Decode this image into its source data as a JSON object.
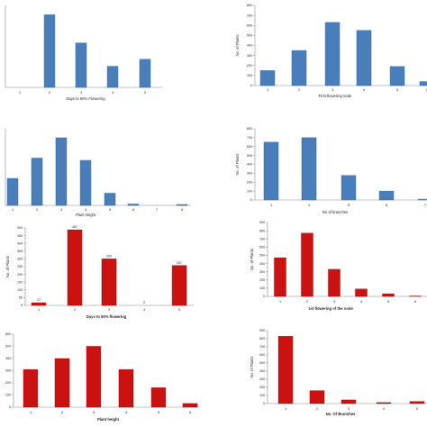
{
  "chart_data": [
    {
      "type": "bar",
      "colors": {
        "fill": "#4a7ebb",
        "edge": "#2e5f9a"
      },
      "categories": [
        "1",
        "2",
        "3",
        "4",
        "5"
      ],
      "values": [
        0,
        62,
        38,
        18,
        24
      ],
      "xlabel": "Days to 50% Flowering",
      "ylabel": "",
      "ylim": [
        0,
        70
      ],
      "yticks": [],
      "data_labels": [],
      "grid": false
    },
    {
      "type": "bar",
      "colors": {
        "fill": "#4a7ebb",
        "edge": "#2e5f9a"
      },
      "categories": [
        "1",
        "2",
        "3",
        "4",
        "5",
        "6"
      ],
      "values": [
        150,
        350,
        630,
        550,
        190,
        40
      ],
      "xlabel": "First flowering node",
      "ylabel": "No. of Plants",
      "ylim": [
        0,
        800
      ],
      "yticks": [
        "0",
        "100",
        "200",
        "300",
        "400",
        "500",
        "600",
        "700",
        "800"
      ],
      "data_labels": [],
      "grid": false
    },
    {
      "type": "bar",
      "colors": {
        "fill": "#4a7ebb",
        "edge": "#2e5f9a"
      },
      "categories": [
        "1",
        "2",
        "3",
        "4",
        "5",
        "6",
        "7",
        "8"
      ],
      "values": [
        60,
        105,
        150,
        100,
        27,
        3,
        0,
        2
      ],
      "xlabel": "Plant height",
      "ylabel": "",
      "ylim": [
        0,
        170
      ],
      "yticks": [],
      "data_labels": [],
      "grid": false
    },
    {
      "type": "bar",
      "colors": {
        "fill": "#4a7ebb",
        "edge": "#2e5f9a"
      },
      "categories": [
        "1",
        "3",
        "5",
        "6",
        "7"
      ],
      "values": [
        650,
        700,
        275,
        100,
        10
      ],
      "xlabel": "No of branches",
      "ylabel": "No. of Plants",
      "ylim": [
        0,
        800
      ],
      "yticks": [
        "0",
        "100",
        "200",
        "300",
        "400",
        "500",
        "600",
        "700",
        "800"
      ],
      "data_labels": [],
      "grid": false
    },
    {
      "type": "bar",
      "colors": {
        "fill": "#cc1111",
        "edge": "#8b0b0b"
      },
      "categories": [
        "1",
        "2",
        "3",
        "4",
        "5"
      ],
      "values": [
        17,
        487,
        300,
        0,
        257
      ],
      "xlabel": "Days to 50% flowering",
      "ylabel": "No. of Plants",
      "ylim": [
        0,
        500
      ],
      "yticks": [
        "0",
        "50",
        "100",
        "150",
        "200",
        "250",
        "300",
        "350",
        "400",
        "450",
        "500"
      ],
      "data_labels": [
        "17",
        "487",
        "300",
        "0",
        "257"
      ],
      "grid": false
    },
    {
      "type": "bar",
      "colors": {
        "fill": "#cc1111",
        "edge": "#8b0b0b"
      },
      "categories": [
        "1",
        "2",
        "3",
        "4",
        "5",
        "6"
      ],
      "values": [
        470,
        770,
        330,
        90,
        30,
        5
      ],
      "xlabel": "1st flowering of the node",
      "ylabel": "No. of Plants",
      "ylim": [
        0,
        900
      ],
      "yticks": [
        "0",
        "100",
        "200",
        "300",
        "400",
        "500",
        "600",
        "700",
        "800",
        "900"
      ],
      "data_labels": [],
      "grid": false
    },
    {
      "type": "bar",
      "colors": {
        "fill": "#cc1111",
        "edge": "#8b0b0b"
      },
      "categories": [
        "1",
        "2",
        "3",
        "4",
        "5",
        "6"
      ],
      "values": [
        310,
        400,
        500,
        310,
        160,
        30
      ],
      "xlabel": "Plant height",
      "ylabel": "",
      "ylim": [
        0,
        600
      ],
      "yticks": [
        "0",
        "100",
        "200",
        "300",
        "400",
        "500",
        "600"
      ],
      "data_labels": [],
      "grid": false
    },
    {
      "type": "bar",
      "colors": {
        "fill": "#cc1111",
        "edge": "#8b0b0b"
      },
      "categories": [
        "1",
        "2",
        "3",
        "4",
        "5"
      ],
      "values": [
        830,
        160,
        45,
        12,
        25
      ],
      "xlabel": "No. Of Branches",
      "ylabel": "No. of Plants",
      "ylim": [
        0,
        900
      ],
      "yticks": [
        "0",
        "100",
        "200",
        "300",
        "400",
        "500",
        "600",
        "700",
        "800",
        "900"
      ],
      "data_labels": [],
      "grid": false
    }
  ]
}
